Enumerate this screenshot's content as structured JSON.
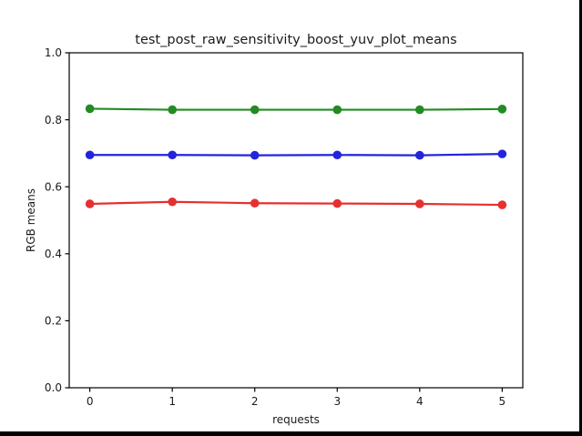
{
  "chart_data": {
    "type": "line",
    "title": "test_post_raw_sensitivity_boost_yuv_plot_means",
    "xlabel": "requests",
    "ylabel": "RGB means",
    "x": [
      0,
      1,
      2,
      3,
      4,
      5
    ],
    "series": [
      {
        "name": "red",
        "color": "#e53030",
        "values": [
          0.549,
          0.555,
          0.551,
          0.55,
          0.549,
          0.546
        ]
      },
      {
        "name": "green",
        "color": "#228b22",
        "values": [
          0.833,
          0.83,
          0.83,
          0.83,
          0.83,
          0.832
        ]
      },
      {
        "name": "blue",
        "color": "#2323dd",
        "values": [
          0.695,
          0.695,
          0.694,
          0.695,
          0.694,
          0.698
        ]
      }
    ],
    "xlim": [
      -0.25,
      5.25
    ],
    "ylim": [
      0,
      1
    ],
    "xtick_values": [
      0,
      1,
      2,
      3,
      4,
      5
    ],
    "xtick_labels": [
      "0",
      "1",
      "2",
      "3",
      "4",
      "5"
    ],
    "ytick_values": [
      0.0,
      0.2,
      0.4,
      0.6,
      0.8,
      1.0
    ],
    "ytick_labels": [
      "0.0",
      "0.2",
      "0.4",
      "0.6",
      "0.8",
      "1.0"
    ],
    "grid": false,
    "legend_position": "none",
    "axis_color": "#000000",
    "text_color": "#1a1a1a",
    "background_color": "#ffffff"
  }
}
